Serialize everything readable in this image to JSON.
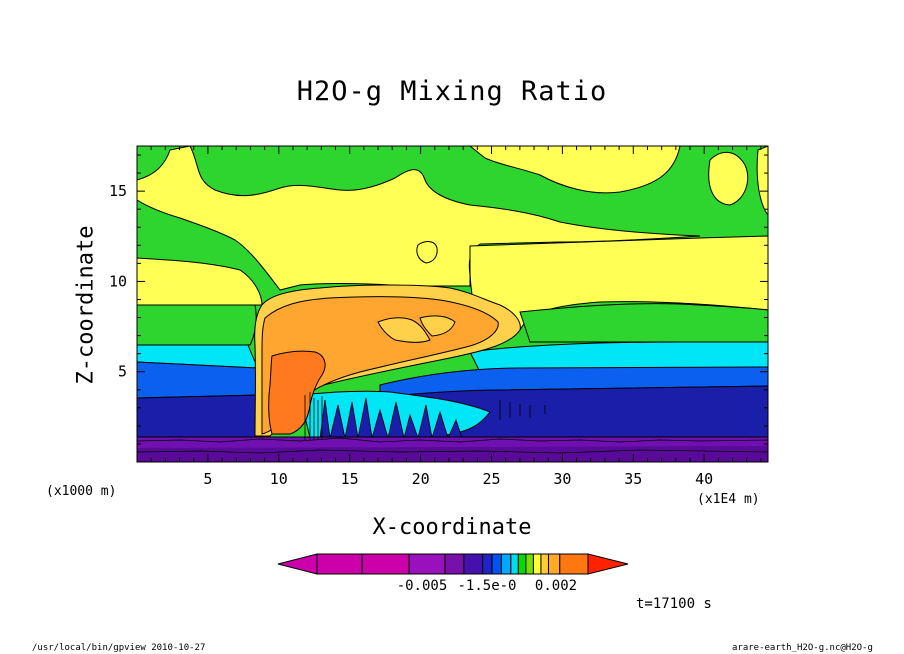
{
  "chart_data": {
    "type": "contour",
    "title": "H2O-g Mixing Ratio",
    "xlabel": "X-coordinate",
    "ylabel": "Z-coordinate",
    "x_unit": "(x1E4 m)",
    "y_unit": "(x1000 m)",
    "xlim": [
      0,
      44.5
    ],
    "ylim": [
      0,
      17.5
    ],
    "x_ticks": [
      5,
      10,
      15,
      20,
      25,
      30,
      35,
      40
    ],
    "y_ticks": [
      5,
      10,
      15
    ],
    "colorbar_labels": [
      "-0.005",
      "-1.5e-0",
      "0.002"
    ],
    "colorbar_colors": [
      "#cc00aa",
      "#cc00aa",
      "#cc00aa",
      "#9911bb",
      "#7711aa",
      "#4411aa",
      "#2222cc",
      "#0055ee",
      "#00aaff",
      "#00ddee",
      "#00dd00",
      "#77dd00",
      "#ffff33",
      "#ffcc33",
      "#ffaa22",
      "#ff7711",
      "#ff2200"
    ],
    "bands": [
      {
        "name": "lowest",
        "color": "#7010b0"
      },
      {
        "name": "dark-blue",
        "color": "#1a1ea8"
      },
      {
        "name": "blue",
        "color": "#0b60f0"
      },
      {
        "name": "cyan",
        "color": "#00e6f6"
      },
      {
        "name": "green",
        "color": "#2fd52f"
      },
      {
        "name": "yellow",
        "color": "#ffff55"
      },
      {
        "name": "light-orange",
        "color": "#ffd04a"
      },
      {
        "name": "orange",
        "color": "#ffa631"
      },
      {
        "name": "dark-orange",
        "color": "#ff7a1f"
      }
    ],
    "time": "t=17100 s"
  },
  "footer": {
    "left": "/usr/local/bin/gpview  2010-10-27",
    "right": "arare-earth_H2O-g.nc@H2O-g"
  }
}
